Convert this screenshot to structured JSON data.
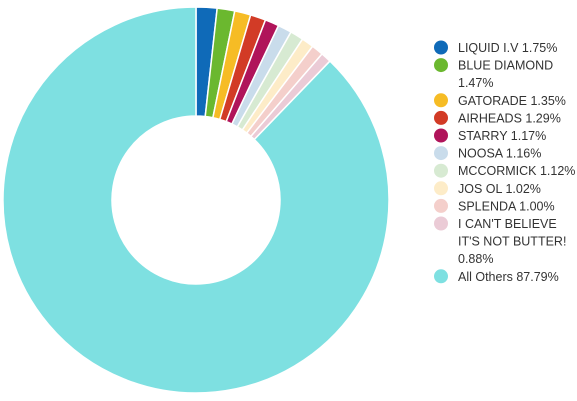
{
  "chart_data": {
    "type": "pie",
    "donut": true,
    "legend_position": "right",
    "slices": [
      {
        "label": "LIQUID I.V",
        "value": 1.75,
        "value_text": "1.75%",
        "color": "#0f6ab8"
      },
      {
        "label": "BLUE DIAMOND",
        "value": 1.47,
        "value_text": "1.47%",
        "color": "#6bb82f"
      },
      {
        "label": "GATORADE",
        "value": 1.35,
        "value_text": "1.35%",
        "color": "#f6bc25"
      },
      {
        "label": "AIRHEADS",
        "value": 1.29,
        "value_text": "1.29%",
        "color": "#d23b26"
      },
      {
        "label": "STARRY",
        "value": 1.17,
        "value_text": "1.17%",
        "color": "#b0145a"
      },
      {
        "label": "NOOSA",
        "value": 1.16,
        "value_text": "1.16%",
        "color": "#c9dceb"
      },
      {
        "label": "MCCORMICK",
        "value": 1.12,
        "value_text": "1.12%",
        "color": "#d7ead2"
      },
      {
        "label": "JOS OL",
        "value": 1.02,
        "value_text": "1.02%",
        "color": "#fdecc8"
      },
      {
        "label": "SPLENDA",
        "value": 1.0,
        "value_text": "1.00%",
        "color": "#f4cfcb"
      },
      {
        "label": "I CAN'T BELIEVE IT'S NOT BUTTER!",
        "value": 0.88,
        "value_text": "0.88%",
        "color": "#ebcbd6"
      },
      {
        "label": "All Others",
        "value": 87.79,
        "value_text": "87.79%",
        "color": "#7ee0e1"
      }
    ]
  }
}
